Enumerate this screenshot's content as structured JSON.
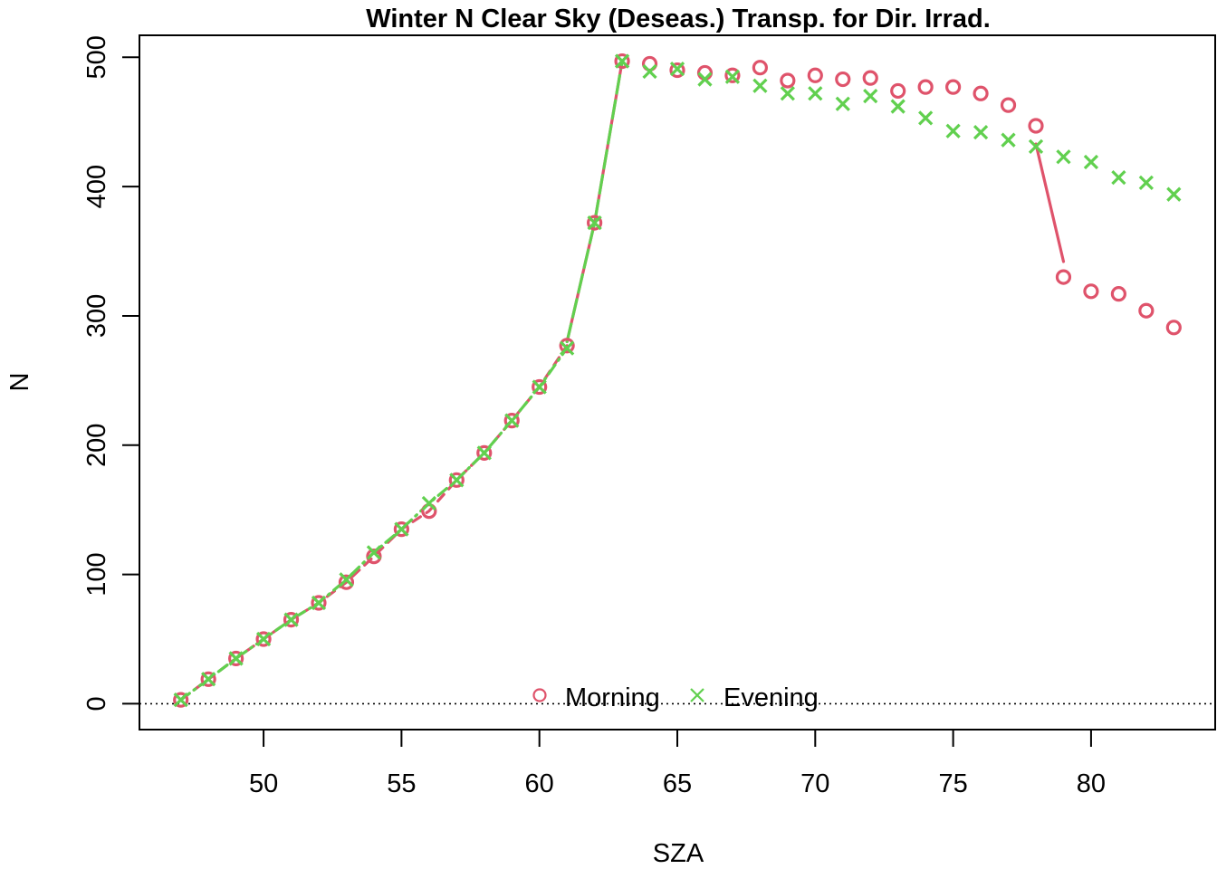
{
  "chart_data": {
    "type": "scatter",
    "title": "Winter N Clear Sky (Deseas.) Transp. for Dir. Irrad.",
    "xlabel": "SZA",
    "ylabel": "N",
    "xlim": [
      45.5,
      84.5
    ],
    "ylim": [
      -20,
      517
    ],
    "x_ticks": [
      50,
      55,
      60,
      65,
      70,
      75,
      80
    ],
    "y_ticks": [
      0,
      100,
      200,
      300,
      400,
      500
    ],
    "reference_line": {
      "y": 0,
      "style": "dotted"
    },
    "legend": {
      "placement": "bottom-center",
      "horizontal": true
    },
    "series": [
      {
        "name": "Morning",
        "marker": "circle",
        "color": "#DF536B",
        "x": [
          47,
          48,
          49,
          50,
          51,
          52,
          53,
          54,
          55,
          56,
          57,
          58,
          59,
          60,
          61,
          62,
          63,
          64,
          65,
          66,
          67,
          68,
          69,
          70,
          71,
          72,
          73,
          74,
          75,
          76,
          77,
          78,
          79,
          80,
          81,
          82,
          83
        ],
        "y": [
          3,
          19,
          35,
          50,
          65,
          78,
          94,
          114,
          135,
          149,
          173,
          194,
          219,
          245,
          277,
          372,
          497,
          495,
          490,
          488,
          486,
          492,
          482,
          486,
          483,
          484,
          474,
          477,
          477,
          472,
          463,
          447,
          330,
          319,
          317,
          304,
          291
        ]
      },
      {
        "name": "Evening",
        "marker": "cross",
        "color": "#61D04F",
        "x": [
          47,
          48,
          49,
          50,
          51,
          52,
          53,
          54,
          55,
          56,
          57,
          58,
          59,
          60,
          61,
          62,
          63,
          64,
          65,
          66,
          67,
          68,
          69,
          70,
          71,
          72,
          73,
          74,
          75,
          76,
          77,
          78,
          79,
          80,
          81,
          82,
          83
        ],
        "y": [
          3,
          19,
          35,
          50,
          65,
          78,
          96,
          117,
          135,
          155,
          173,
          194,
          219,
          245,
          275,
          372,
          497,
          489,
          491,
          483,
          485,
          478,
          472,
          472,
          464,
          470,
          462,
          453,
          443,
          442,
          436,
          431,
          423,
          419,
          407,
          403,
          394
        ]
      }
    ],
    "fit_lines": [
      {
        "series": "Morning",
        "color": "#DF536B",
        "style": "dashed",
        "x": [
          47,
          48,
          49,
          50,
          51,
          52,
          53,
          54,
          55,
          56,
          57,
          58,
          59,
          60,
          61
        ],
        "y": [
          3,
          19,
          35,
          50,
          65,
          78,
          94,
          114,
          135,
          149,
          173,
          194,
          219,
          245,
          277
        ]
      },
      {
        "series": "Evening",
        "color": "#61D04F",
        "style": "dashdot",
        "x": [
          47,
          48,
          49,
          50,
          51,
          52,
          53,
          54,
          55,
          56,
          57,
          58,
          59,
          60,
          61
        ],
        "y": [
          3,
          19,
          35,
          50,
          65,
          78,
          96,
          117,
          135,
          155,
          173,
          194,
          219,
          245,
          275
        ]
      },
      {
        "series": "Morning",
        "color": "#DF536B",
        "style": "solid",
        "x": [
          61,
          62,
          63
        ],
        "y": [
          280,
          372,
          497
        ]
      },
      {
        "series": "Evening",
        "color": "#61D04F",
        "style": "longdash",
        "x": [
          61,
          62,
          63
        ],
        "y": [
          280,
          372,
          497
        ]
      },
      {
        "series": "Morning",
        "color": "#DF536B",
        "style": "solid",
        "x": [
          78,
          79
        ],
        "y": [
          433,
          342
        ]
      }
    ]
  }
}
